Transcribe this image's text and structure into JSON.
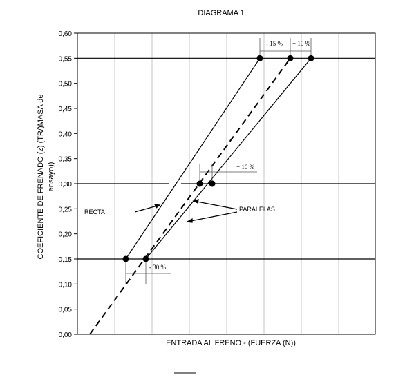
{
  "chart_data": {
    "type": "line",
    "title": "DIAGRAMA 1",
    "xlabel": "ENTRADA AL FRENO - (FUERZA (N))",
    "ylabel_line1": "COEFICIENTE DE FRENADO (z) (TR/)MASA de",
    "ylabel_line2": "ensayo))",
    "y_ticks": [
      "0,00",
      "0,05",
      "0,10",
      "0,15",
      "0,20",
      "0,25",
      "0,30",
      "0,35",
      "0,40",
      "0,45",
      "0,50",
      "0,55",
      "0,60"
    ],
    "ylim": [
      0,
      0.6
    ],
    "x_tick_labels": [],
    "grid": "x-only",
    "reference_levels": [
      0.15,
      0.3,
      0.55
    ],
    "series": [
      {
        "name": "",
        "style": "solid",
        "points": [
          [
            1.55,
            0.15
          ],
          [
            4.6,
            0.55
          ]
        ]
      },
      {
        "name": "",
        "style": "dashed",
        "points": [
          [
            0.3,
            0.0
          ],
          [
            5.7,
            0.55
          ]
        ]
      },
      {
        "name": "",
        "style": "solid",
        "points": [
          [
            2.1,
            0.15
          ],
          [
            5.3,
            0.55
          ]
        ]
      }
    ],
    "markers": [
      [
        1.6,
        0.15
      ],
      [
        2.25,
        0.15
      ],
      [
        3.6,
        0.3
      ],
      [
        4.05,
        0.3
      ],
      [
        6.08,
        0.55
      ],
      [
        7.0,
        0.55
      ],
      [
        7.7,
        0.55
      ]
    ],
    "annotations": {
      "upper_left": "- 15 %",
      "upper_right": "+ 10 %",
      "middle": "+ 10 %",
      "lower": "- 30 %",
      "recta": "RECTA",
      "paralelas": "PARALELAS"
    }
  }
}
